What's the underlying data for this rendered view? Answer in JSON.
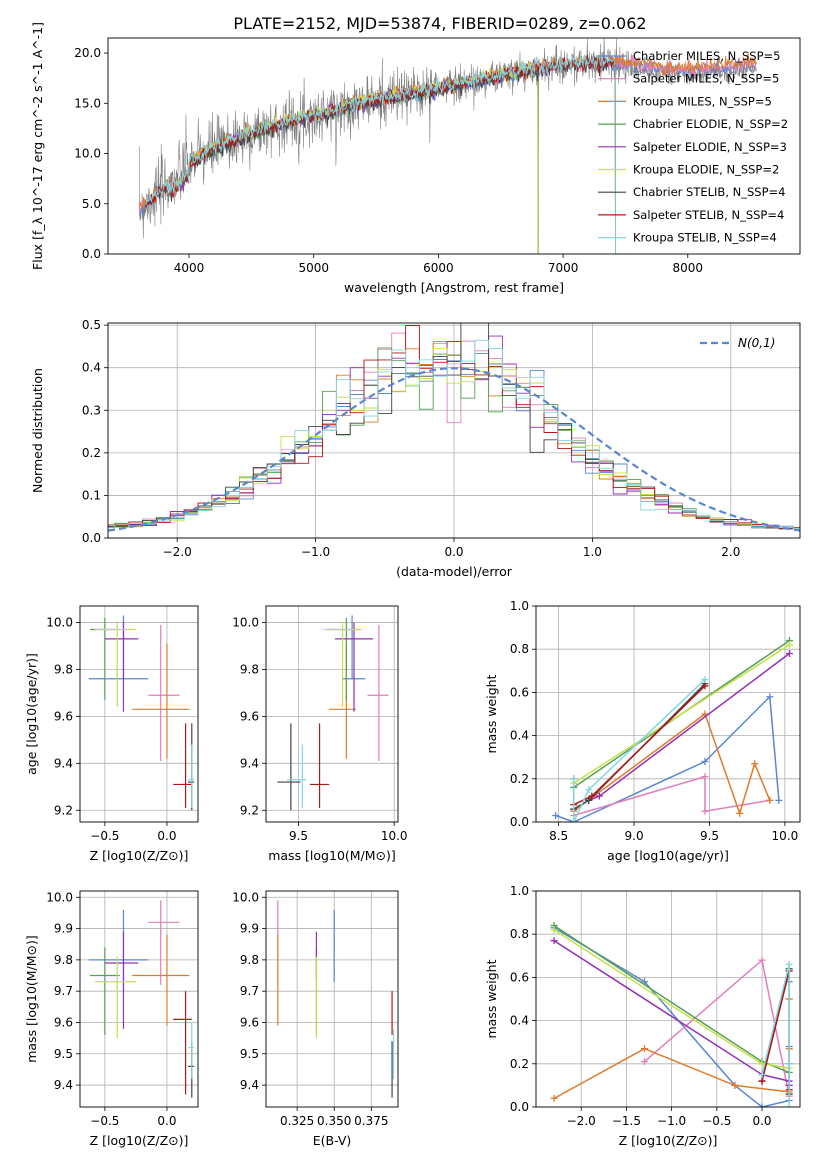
{
  "title": "PLATE=2152, MJD=53874, FIBERID=0289, z=0.062",
  "colors": {
    "Chabrier MILES": "#5b87cf",
    "Salpeter MILES": "#e07fbc",
    "Kroupa MILES": "#e07b2a",
    "Chabrier ELODIE": "#55a055",
    "Salpeter ELODIE": "#9430b5",
    "Kroupa ELODIE": "#c5e04a",
    "Chabrier STELIB": "#444444",
    "Salpeter STELIB": "#b01818",
    "Kroupa STELIB": "#86d6df",
    "data": "#7f7f7f",
    "gaussian": "#5b87cf"
  },
  "chart_data": [
    {
      "type": "line",
      "title": "PLATE=2152, MJD=53874, FIBERID=0289, z=0.062",
      "xlabel": "wavelength [Angstrom, rest frame]",
      "ylabel": "Flux [f_λ 10^-17 erg cm^-2 s^-1 A^-1]",
      "xlim": [
        3350,
        8900
      ],
      "ylim": [
        0,
        21.5
      ],
      "xticks": [
        4000,
        5000,
        6000,
        7000,
        8000
      ],
      "yticks": [
        0,
        5,
        10,
        15,
        20
      ],
      "grid": false,
      "legend_position": "top-right",
      "legend": [
        "Chabrier MILES, N_SSP=5",
        "Salpeter MILES, N_SSP=5",
        "Kroupa MILES, N_SSP=5",
        "Chabrier ELODIE, N_SSP=2",
        "Salpeter ELODIE, N_SSP=3",
        "Kroupa ELODIE, N_SSP=2",
        "Chabrier STELIB, N_SSP=4",
        "Salpeter STELIB, N_SSP=4",
        "Kroupa STELIB, N_SSP=4"
      ],
      "continuum": {
        "x": [
          3600,
          3700,
          3800,
          3900,
          4000,
          4100,
          4200,
          4300,
          4500,
          4700,
          4900,
          5100,
          5300,
          5500,
          5800,
          6000,
          6300,
          6600,
          6800,
          7000,
          7200,
          7400,
          7600,
          7800,
          8000,
          8200,
          8400,
          8550
        ],
        "y": [
          4.5,
          5.5,
          6.5,
          7.5,
          9.0,
          9.8,
          10.5,
          11.0,
          12.0,
          12.8,
          13.5,
          14.0,
          14.8,
          15.3,
          16.0,
          16.5,
          17.2,
          18.0,
          18.5,
          18.8,
          19.0,
          19.1,
          18.9,
          18.5,
          18.4,
          18.6,
          18.8,
          18.9
        ]
      }
    },
    {
      "type": "line",
      "xlabel": "(data-model)/error",
      "ylabel": "Normed distribution",
      "xlim": [
        -2.5,
        2.5
      ],
      "ylim": [
        0,
        0.505
      ],
      "xticks": [
        -2,
        -1,
        0,
        1,
        2
      ],
      "yticks": [
        0.0,
        0.1,
        0.2,
        0.3,
        0.4,
        0.5
      ],
      "grid": true,
      "legend_position": "top-right",
      "legend": [
        "N(0,1)"
      ],
      "hist_bin_width": 0.1
    },
    {
      "type": "scatter",
      "xlabel": "Z [log10(Z/Z⊙)]",
      "ylabel": "age  [log10(age/yr)]",
      "xlim": [
        -0.7,
        0.25
      ],
      "ylim": [
        9.15,
        10.07
      ],
      "xticks": [
        -0.5,
        0.0
      ],
      "yticks": [
        9.2,
        9.4,
        9.6,
        9.8,
        10.0
      ],
      "grid": true,
      "series": [
        {
          "x": -0.35,
          "y": 9.76,
          "xerr": [
            0.28,
            0.2
          ],
          "yerr": [
            0.0,
            0.27
          ],
          "color_key": "Chabrier MILES"
        },
        {
          "x": -0.05,
          "y": 9.69,
          "xerr": [
            0.1,
            0.15
          ],
          "yerr": [
            0.28,
            0.3
          ],
          "color_key": "Salpeter MILES"
        },
        {
          "x": 0.0,
          "y": 9.63,
          "xerr": [
            0.28,
            0.18
          ],
          "yerr": [
            0.21,
            0.28
          ],
          "color_key": "Kroupa MILES"
        },
        {
          "x": -0.5,
          "y": 9.97,
          "xerr": [
            0.12,
            0.12
          ],
          "yerr": [
            0.3,
            0.05
          ],
          "color_key": "Chabrier ELODIE"
        },
        {
          "x": -0.35,
          "y": 9.93,
          "xerr": [
            0.15,
            0.12
          ],
          "yerr": [
            0.31,
            0.07
          ],
          "color_key": "Salpeter ELODIE"
        },
        {
          "x": -0.4,
          "y": 9.97,
          "xerr": [
            0.18,
            0.15
          ],
          "yerr": [
            0.33,
            0.03
          ],
          "color_key": "Kroupa ELODIE"
        },
        {
          "x": 0.2,
          "y": 9.32,
          "xerr": [
            0.03,
            0.02
          ],
          "yerr": [
            0.12,
            0.25
          ],
          "color_key": "Chabrier STELIB"
        },
        {
          "x": 0.15,
          "y": 9.31,
          "xerr": [
            0.1,
            0.05
          ],
          "yerr": [
            0.1,
            0.26
          ],
          "color_key": "Salpeter STELIB"
        },
        {
          "x": 0.2,
          "y": 9.33,
          "xerr": [
            0.03,
            0.02
          ],
          "yerr": [
            0.12,
            0.15
          ],
          "color_key": "Kroupa STELIB"
        }
      ]
    },
    {
      "type": "scatter",
      "xlabel": "mass [log10(M/M⊙)]",
      "ylabel": "",
      "xlim": [
        9.33,
        10.02
      ],
      "ylim": [
        9.15,
        10.07
      ],
      "xticks": [
        9.5,
        10.0
      ],
      "yticks": [
        9.2,
        9.4,
        9.6,
        9.8,
        10.0
      ],
      "grid": true,
      "series": [
        {
          "x": 9.78,
          "y": 9.76,
          "xerr": [
            0.05,
            0.07
          ],
          "yerr": [
            0.0,
            0.27
          ],
          "color_key": "Chabrier MILES"
        },
        {
          "x": 9.92,
          "y": 9.69,
          "xerr": [
            0.06,
            0.05
          ],
          "yerr": [
            0.28,
            0.3
          ],
          "color_key": "Salpeter MILES"
        },
        {
          "x": 9.75,
          "y": 9.63,
          "xerr": [
            0.09,
            0.05
          ],
          "yerr": [
            0.21,
            0.28
          ],
          "color_key": "Kroupa MILES"
        },
        {
          "x": 9.75,
          "y": 9.97,
          "xerr": [
            0.1,
            0.07
          ],
          "yerr": [
            0.3,
            0.05
          ],
          "color_key": "Chabrier ELODIE"
        },
        {
          "x": 9.79,
          "y": 9.93,
          "xerr": [
            0.1,
            0.1
          ],
          "yerr": [
            0.31,
            0.07
          ],
          "color_key": "Salpeter ELODIE"
        },
        {
          "x": 9.73,
          "y": 9.97,
          "xerr": [
            0.1,
            0.1
          ],
          "yerr": [
            0.33,
            0.03
          ],
          "color_key": "Kroupa ELODIE"
        },
        {
          "x": 9.46,
          "y": 9.32,
          "xerr": [
            0.07,
            0.05
          ],
          "yerr": [
            0.12,
            0.25
          ],
          "color_key": "Chabrier STELIB"
        },
        {
          "x": 9.61,
          "y": 9.31,
          "xerr": [
            0.05,
            0.05
          ],
          "yerr": [
            0.1,
            0.26
          ],
          "color_key": "Salpeter STELIB"
        },
        {
          "x": 9.52,
          "y": 9.33,
          "xerr": [
            0.08,
            0.02
          ],
          "yerr": [
            0.12,
            0.15
          ],
          "color_key": "Kroupa STELIB"
        }
      ]
    },
    {
      "type": "line",
      "xlabel": "age  [log10(age/yr)]",
      "ylabel": "mass weight",
      "xlim": [
        8.35,
        10.1
      ],
      "ylim": [
        0,
        1.0
      ],
      "xticks": [
        8.5,
        9.0,
        9.5,
        10.0
      ],
      "yticks": [
        0.0,
        0.2,
        0.4,
        0.6,
        0.8,
        1.0
      ],
      "grid": true,
      "series": [
        {
          "x": [
            8.48,
            8.6,
            9.47,
            9.9,
            9.96
          ],
          "y": [
            0.03,
            0.0,
            0.28,
            0.58,
            0.1
          ],
          "color_key": "Chabrier MILES"
        },
        {
          "x": [
            8.6,
            9.47,
            9.47,
            9.9
          ],
          "y": [
            0.03,
            0.21,
            0.05,
            0.1
          ],
          "color_key": "Salpeter MILES"
        },
        {
          "x": [
            8.6,
            9.47,
            9.7,
            9.8,
            9.9
          ],
          "y": [
            0.05,
            0.5,
            0.04,
            0.27,
            0.1
          ],
          "color_key": "Kroupa MILES"
        },
        {
          "x": [
            8.6,
            10.03
          ],
          "y": [
            0.16,
            0.84
          ],
          "color_key": "Chabrier ELODIE"
        },
        {
          "x": [
            8.7,
            8.77,
            10.03
          ],
          "y": [
            0.1,
            0.12,
            0.78
          ],
          "color_key": "Salpeter ELODIE"
        },
        {
          "x": [
            8.6,
            10.03
          ],
          "y": [
            0.18,
            0.82
          ],
          "color_key": "Kroupa ELODIE"
        },
        {
          "x": [
            8.6,
            8.6,
            8.7,
            9.47
          ],
          "y": [
            0.2,
            0.06,
            0.1,
            0.64
          ],
          "color_key": "Chabrier STELIB"
        },
        {
          "x": [
            8.6,
            8.72,
            9.47
          ],
          "y": [
            0.08,
            0.12,
            0.63
          ],
          "color_key": "Salpeter STELIB"
        },
        {
          "x": [
            8.6,
            8.6,
            8.7,
            9.47
          ],
          "y": [
            0.2,
            0.0,
            0.15,
            0.66
          ],
          "color_key": "Kroupa STELIB"
        }
      ]
    },
    {
      "type": "scatter",
      "xlabel": "Z [log10(Z/Z⊙)]",
      "ylabel": "mass [log10(M/M⊙)]",
      "xlim": [
        -0.7,
        0.25
      ],
      "ylim": [
        9.33,
        10.02
      ],
      "xticks": [
        -0.5,
        0.0
      ],
      "yticks": [
        9.4,
        9.5,
        9.6,
        9.7,
        9.8,
        9.9,
        10.0
      ],
      "grid": true,
      "series": [
        {
          "x": -0.35,
          "y": 9.8,
          "xerr": [
            0.28,
            0.2
          ],
          "yerr": [
            0.1,
            0.16
          ],
          "color_key": "Chabrier MILES"
        },
        {
          "x": -0.05,
          "y": 9.92,
          "xerr": [
            0.1,
            0.15
          ],
          "yerr": [
            0.2,
            0.07
          ],
          "color_key": "Salpeter MILES"
        },
        {
          "x": 0.0,
          "y": 9.75,
          "xerr": [
            0.28,
            0.18
          ],
          "yerr": [
            0.16,
            0.13
          ],
          "color_key": "Kroupa MILES"
        },
        {
          "x": -0.5,
          "y": 9.75,
          "xerr": [
            0.12,
            0.12
          ],
          "yerr": [
            0.19,
            0.09
          ],
          "color_key": "Chabrier ELODIE"
        },
        {
          "x": -0.35,
          "y": 9.79,
          "xerr": [
            0.15,
            0.12
          ],
          "yerr": [
            0.21,
            0.1
          ],
          "color_key": "Salpeter ELODIE"
        },
        {
          "x": -0.4,
          "y": 9.73,
          "xerr": [
            0.18,
            0.15
          ],
          "yerr": [
            0.18,
            0.08
          ],
          "color_key": "Kroupa ELODIE"
        },
        {
          "x": 0.2,
          "y": 9.46,
          "xerr": [
            0.03,
            0.02
          ],
          "yerr": [
            0.1,
            0.08
          ],
          "color_key": "Chabrier STELIB"
        },
        {
          "x": 0.15,
          "y": 9.61,
          "xerr": [
            0.1,
            0.05
          ],
          "yerr": [
            0.24,
            0.09
          ],
          "color_key": "Salpeter STELIB"
        },
        {
          "x": 0.2,
          "y": 9.52,
          "xerr": [
            0.03,
            0.02
          ],
          "yerr": [
            0.1,
            0.08
          ],
          "color_key": "Kroupa STELIB"
        }
      ]
    },
    {
      "type": "scatter",
      "xlabel": "E(B-V)",
      "ylabel": "",
      "xlim": [
        0.304,
        0.393
      ],
      "ylim": [
        9.33,
        10.02
      ],
      "xticks": [
        0.325,
        0.35,
        0.375
      ],
      "xtick_labels": [
        "0.325",
        "0.350",
        "0.375"
      ],
      "yticks": [
        9.4,
        9.5,
        9.6,
        9.7,
        9.8,
        9.9,
        10.0
      ],
      "grid": true,
      "series": [
        {
          "x": 0.35,
          "y": 9.8,
          "xerr": [
            0,
            0
          ],
          "yerr": [
            0.07,
            0.16
          ],
          "color_key": "Chabrier MILES"
        },
        {
          "x": 0.312,
          "y": 9.92,
          "xerr": [
            0,
            0
          ],
          "yerr": [
            0.2,
            0.07
          ],
          "color_key": "Salpeter MILES"
        },
        {
          "x": 0.312,
          "y": 9.75,
          "xerr": [
            0,
            0
          ],
          "yerr": [
            0.16,
            0.13
          ],
          "color_key": "Kroupa MILES"
        },
        {
          "x": 0.338,
          "y": 9.75,
          "xerr": [
            0,
            0
          ],
          "yerr": [
            0.19,
            0.09
          ],
          "color_key": "Chabrier ELODIE"
        },
        {
          "x": 0.338,
          "y": 9.79,
          "xerr": [
            0,
            0
          ],
          "yerr": [
            0.05,
            0.1
          ],
          "color_key": "Salpeter ELODIE"
        },
        {
          "x": 0.338,
          "y": 9.73,
          "xerr": [
            0,
            0
          ],
          "yerr": [
            0.18,
            0.08
          ],
          "color_key": "Kroupa ELODIE"
        },
        {
          "x": 0.389,
          "y": 9.46,
          "xerr": [
            0,
            0
          ],
          "yerr": [
            0.1,
            0.08
          ],
          "color_key": "Chabrier STELIB"
        },
        {
          "x": 0.389,
          "y": 9.61,
          "xerr": [
            0,
            0
          ],
          "yerr": [
            0.05,
            0.09
          ],
          "color_key": "Salpeter STELIB"
        },
        {
          "x": 0.39,
          "y": 9.5,
          "xerr": [
            0,
            0
          ],
          "yerr": [
            0.08,
            0.08
          ],
          "color_key": "Kroupa STELIB"
        }
      ]
    },
    {
      "type": "line",
      "xlabel": "Z [log10(Z/Z⊙)]",
      "ylabel": "mass weight",
      "xlim": [
        -2.5,
        0.42
      ],
      "ylim": [
        0,
        1.0
      ],
      "xticks": [
        -2.0,
        -1.5,
        -1.0,
        -0.5,
        0.0
      ],
      "yticks": [
        0.0,
        0.2,
        0.4,
        0.6,
        0.8,
        1.0
      ],
      "grid": true,
      "series": [
        {
          "x": [
            -2.3,
            -1.3,
            -0.3,
            0.0,
            0.3,
            0.3,
            0.3,
            0.3
          ],
          "y": [
            0.83,
            0.58,
            0.1,
            0.0,
            0.03,
            0.28,
            0.58,
            0.1
          ],
          "color_key": "Chabrier MILES"
        },
        {
          "x": [
            -1.3,
            0.0,
            0.3,
            0.3,
            0.3
          ],
          "y": [
            0.21,
            0.68,
            0.05,
            0.5,
            0.1
          ],
          "color_key": "Salpeter MILES"
        },
        {
          "x": [
            -2.3,
            -1.3,
            -0.3,
            0.3,
            0.3,
            0.3
          ],
          "y": [
            0.04,
            0.27,
            0.1,
            0.07,
            0.5,
            0.27
          ],
          "color_key": "Kroupa MILES"
        },
        {
          "x": [
            -2.3,
            0.0,
            0.3
          ],
          "y": [
            0.84,
            0.21,
            0.16
          ],
          "color_key": "Chabrier ELODIE"
        },
        {
          "x": [
            -2.3,
            0.0,
            0.3,
            0.3
          ],
          "y": [
            0.77,
            0.15,
            0.12,
            0.1
          ],
          "color_key": "Salpeter ELODIE"
        },
        {
          "x": [
            -2.3,
            0.0,
            0.3
          ],
          "y": [
            0.82,
            0.2,
            0.18
          ],
          "color_key": "Kroupa ELODIE"
        },
        {
          "x": [
            0.0,
            0.3,
            0.3,
            0.3
          ],
          "y": [
            0.12,
            0.64,
            0.2,
            0.06
          ],
          "color_key": "Chabrier STELIB"
        },
        {
          "x": [
            0.0,
            0.3,
            0.3
          ],
          "y": [
            0.12,
            0.63,
            0.08
          ],
          "color_key": "Salpeter STELIB"
        },
        {
          "x": [
            0.0,
            0.3,
            0.3,
            0.3
          ],
          "y": [
            0.15,
            0.66,
            0.2,
            0.0
          ],
          "color_key": "Kroupa STELIB"
        }
      ]
    }
  ]
}
